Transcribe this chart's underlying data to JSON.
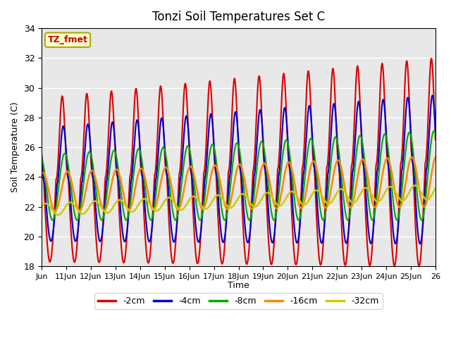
{
  "title": "Tonzi Soil Temperatures Set C",
  "ylabel": "Soil Temperature (C)",
  "xlabel": "Time",
  "ylim": [
    18,
    34
  ],
  "xlim": [
    0,
    384
  ],
  "bg_color": "#e8e8e8",
  "fig_color": "#ffffff",
  "annotation_text": "TZ_fmet",
  "annotation_bg": "#ffffcc",
  "annotation_border": "#aaaa00",
  "xtick_labels": [
    "Jun",
    "11Jun",
    "12Jun",
    "13Jun",
    "14Jun",
    "15Jun",
    "16Jun",
    "17Jun",
    "18Jun",
    "19Jun",
    "20Jun",
    "21Jun",
    "22Jun",
    "23Jun",
    "24Jun",
    "25Jun",
    "26"
  ],
  "xtick_positions": [
    0,
    24,
    48,
    72,
    96,
    120,
    144,
    168,
    192,
    216,
    240,
    264,
    288,
    312,
    336,
    360,
    384
  ],
  "legend_labels": [
    "-2cm",
    "-4cm",
    "-8cm",
    "-16cm",
    "-32cm"
  ],
  "legend_colors": [
    "#dd0000",
    "#0000cc",
    "#00aa00",
    "#ff8800",
    "#cccc00"
  ],
  "line_widths": [
    1.5,
    1.5,
    1.5,
    1.8,
    1.8
  ]
}
